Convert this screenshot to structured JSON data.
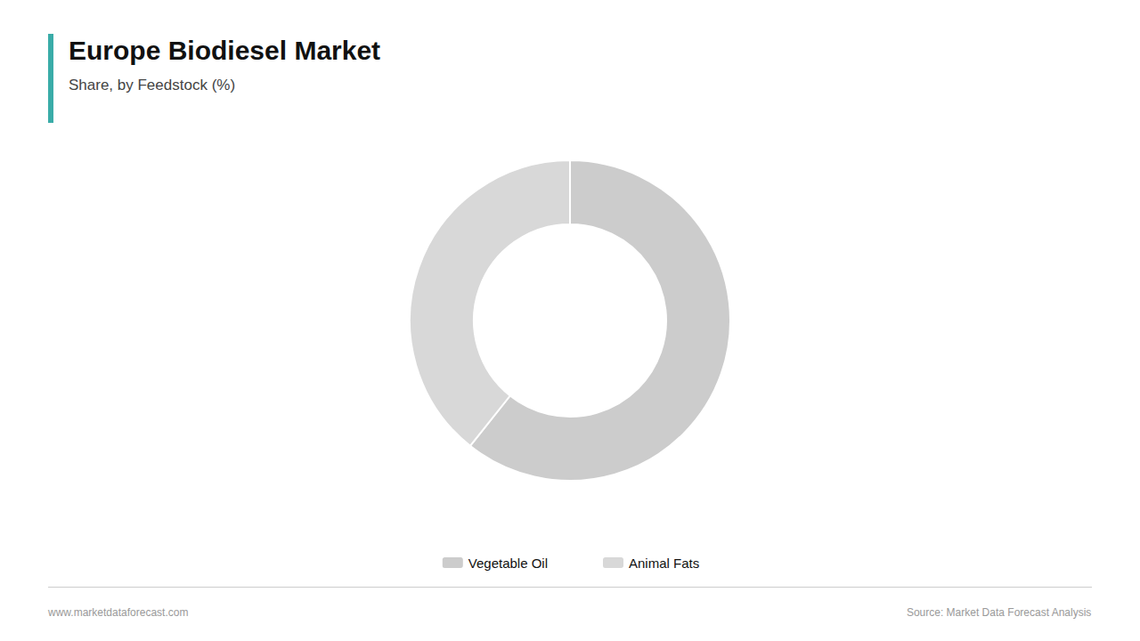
{
  "chart_data": {
    "type": "donut",
    "title": "Europe Biodiesel Market",
    "subtitle": "Share, by Feedstock (%)",
    "categories": [
      "Vegetable Oil",
      "Animal Fats"
    ],
    "values": [
      60.7,
      39.3
    ],
    "colors": [
      "#cccccc",
      "#d8d8d8"
    ],
    "legend": "bottom",
    "annotations": [
      "www.marketdataforecast.com",
      "Source: Market Data Forecast Analysis"
    ]
  }
}
